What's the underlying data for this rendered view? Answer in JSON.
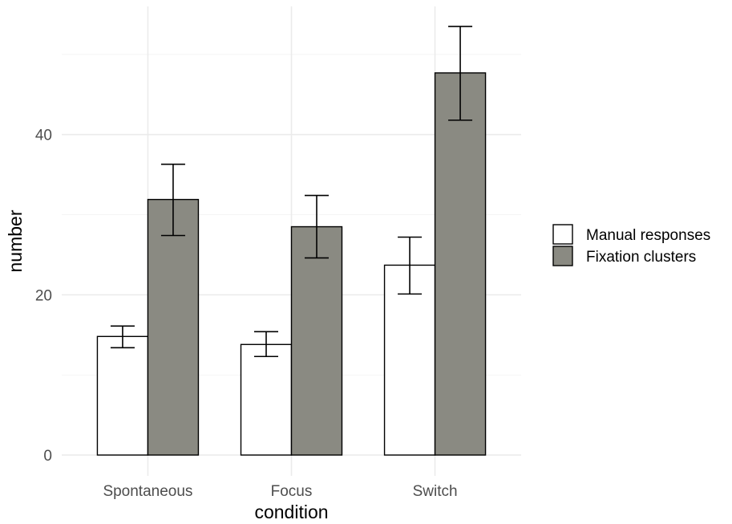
{
  "chart_data": {
    "type": "bar",
    "categories": [
      "Spontaneous",
      "Focus",
      "Switch"
    ],
    "series": [
      {
        "name": "Manual responses",
        "color": "#ffffff",
        "values": [
          14.8,
          13.8,
          23.7
        ],
        "err_low": [
          13.4,
          12.3,
          20.1
        ],
        "err_high": [
          16.1,
          15.4,
          27.2
        ]
      },
      {
        "name": "Fixation clusters",
        "color": "#8a8a82",
        "values": [
          31.9,
          28.5,
          47.7
        ],
        "err_low": [
          27.4,
          24.6,
          41.8
        ],
        "err_high": [
          36.3,
          32.4,
          53.5
        ]
      }
    ],
    "title": "",
    "xlabel": "condition",
    "ylabel": "number",
    "ylim": [
      -2.6,
      56.0
    ],
    "yticks": [
      0,
      20,
      40
    ],
    "grid": true,
    "legend": "right"
  }
}
